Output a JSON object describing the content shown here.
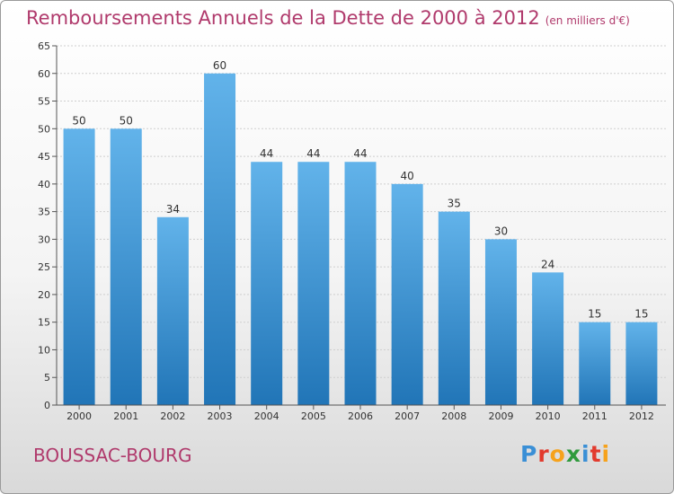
{
  "page": {
    "title": "Remboursements Annuels de la Dette de 2000 à 2012",
    "subtitle": "(en milliers d'€)",
    "commune": "BOUSSAC-BOURG",
    "logo": {
      "letters": [
        "P",
        "r",
        "o",
        "x",
        "i",
        "t",
        "i"
      ],
      "colors": [
        "#3a8fd6",
        "#e23b2e",
        "#f6a21c",
        "#2f9a3d",
        "#3a8fd6",
        "#e23b2e",
        "#f6a21c"
      ]
    },
    "colors": {
      "accent": "#b03a6c",
      "bar_top": "#62b3ea",
      "bar_bottom": "#2175b7",
      "axis": "#555555",
      "grid": "#cfcfcf"
    }
  },
  "chart_data": {
    "type": "bar",
    "categories": [
      "2000",
      "2001",
      "2002",
      "2003",
      "2004",
      "2005",
      "2006",
      "2007",
      "2008",
      "2009",
      "2010",
      "2011",
      "2012"
    ],
    "values": [
      50,
      50,
      34,
      60,
      44,
      44,
      44,
      40,
      35,
      30,
      24,
      15,
      15
    ],
    "title": "Remboursements Annuels de la Dette de 2000 à 2012",
    "subtitle": "(en milliers d'€)",
    "xlabel": "",
    "ylabel": "",
    "ylim": [
      0,
      65
    ],
    "yticks": [
      0,
      5,
      10,
      15,
      20,
      25,
      30,
      35,
      40,
      45,
      50,
      55,
      60,
      65
    ],
    "grid": true,
    "data_labels": true
  }
}
